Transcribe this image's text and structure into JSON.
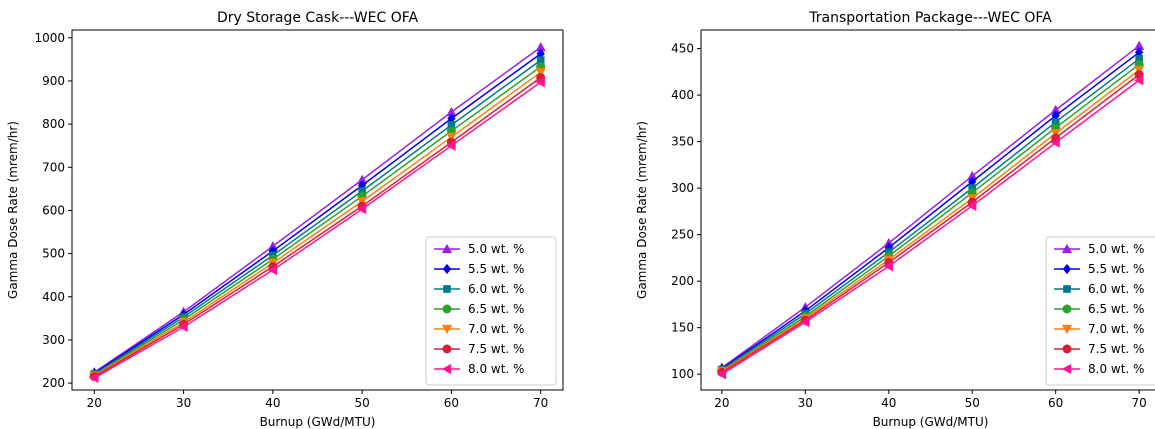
{
  "chart_data": [
    {
      "type": "line",
      "title": "Dry Storage Cask---WEC OFA",
      "xlabel": "Burnup (GWd/MTU)",
      "ylabel": "Gamma Dose Rate (mrem/hr)",
      "x": [
        20,
        30,
        40,
        50,
        60,
        70
      ],
      "xticks": [
        "20",
        "30",
        "40",
        "50",
        "60",
        "70"
      ],
      "yticks": [
        "200",
        "300",
        "400",
        "500",
        "600",
        "700",
        "800",
        "900",
        "1000"
      ],
      "xlim": [
        17.5,
        72.5
      ],
      "ylim": [
        184,
        1018
      ],
      "legend": "lower-right",
      "series": [
        {
          "name": "5.0 wt. %",
          "color": "#9b1fe8",
          "marker": "triangle-up",
          "values": [
            225,
            365,
            517,
            671,
            828,
            978
          ]
        },
        {
          "name": "5.5 wt. %",
          "color": "#0000ee",
          "marker": "diamond",
          "values": [
            223,
            359,
            506,
            658,
            813,
            963
          ]
        },
        {
          "name": "6.0 wt. %",
          "color": "#00798c",
          "marker": "square",
          "values": [
            221,
            353,
            496,
            645,
            798,
            948
          ]
        },
        {
          "name": "6.5 wt. %",
          "color": "#2ca02c",
          "marker": "circle",
          "values": [
            219,
            347,
            487,
            633,
            784,
            933
          ]
        },
        {
          "name": "7.0 wt. %",
          "color": "#ff7f0e",
          "marker": "triangle-down",
          "values": [
            217,
            341,
            478,
            621,
            770,
            920
          ]
        },
        {
          "name": "7.5 wt. %",
          "color": "#d62039",
          "marker": "circle",
          "values": [
            215,
            336,
            470,
            610,
            758,
            908
          ]
        },
        {
          "name": "8.0 wt. %",
          "color": "#ff1493",
          "marker": "triangle-left",
          "values": [
            212,
            330,
            462,
            603,
            750,
            897
          ]
        }
      ]
    },
    {
      "type": "line",
      "title": "Transportation Package---WEC OFA",
      "xlabel": "Burnup (GWd/MTU)",
      "ylabel": "Gamma Dose Rate (mrem/hr)",
      "x": [
        20,
        30,
        40,
        50,
        60,
        70
      ],
      "xticks": [
        "20",
        "30",
        "40",
        "50",
        "60",
        "70"
      ],
      "yticks": [
        "100",
        "150",
        "200",
        "250",
        "300",
        "350",
        "400",
        "450"
      ],
      "xlim": [
        17.5,
        72.5
      ],
      "ylim": [
        83,
        470
      ],
      "legend": "lower-right",
      "series": [
        {
          "name": "5.0 wt. %",
          "color": "#9b1fe8",
          "marker": "triangle-up",
          "values": [
            107,
            172,
            241,
            313,
            384,
            453
          ]
        },
        {
          "name": "5.5 wt. %",
          "color": "#0000ee",
          "marker": "diamond",
          "values": [
            106,
            168,
            236,
            307,
            378,
            446
          ]
        },
        {
          "name": "6.0 wt. %",
          "color": "#00798c",
          "marker": "square",
          "values": [
            105,
            165,
            231,
            300,
            371,
            439
          ]
        },
        {
          "name": "6.5 wt. %",
          "color": "#2ca02c",
          "marker": "circle",
          "values": [
            104,
            162,
            227,
            295,
            365,
            433
          ]
        },
        {
          "name": "7.0 wt. %",
          "color": "#ff7f0e",
          "marker": "triangle-down",
          "values": [
            103,
            160,
            223,
            289,
            359,
            427
          ]
        },
        {
          "name": "7.5 wt. %",
          "color": "#d62039",
          "marker": "circle",
          "values": [
            102,
            158,
            220,
            285,
            354,
            422
          ]
        },
        {
          "name": "8.0 wt. %",
          "color": "#ff1493",
          "marker": "triangle-left",
          "values": [
            100,
            156,
            216,
            281,
            349,
            416
          ]
        }
      ]
    }
  ]
}
